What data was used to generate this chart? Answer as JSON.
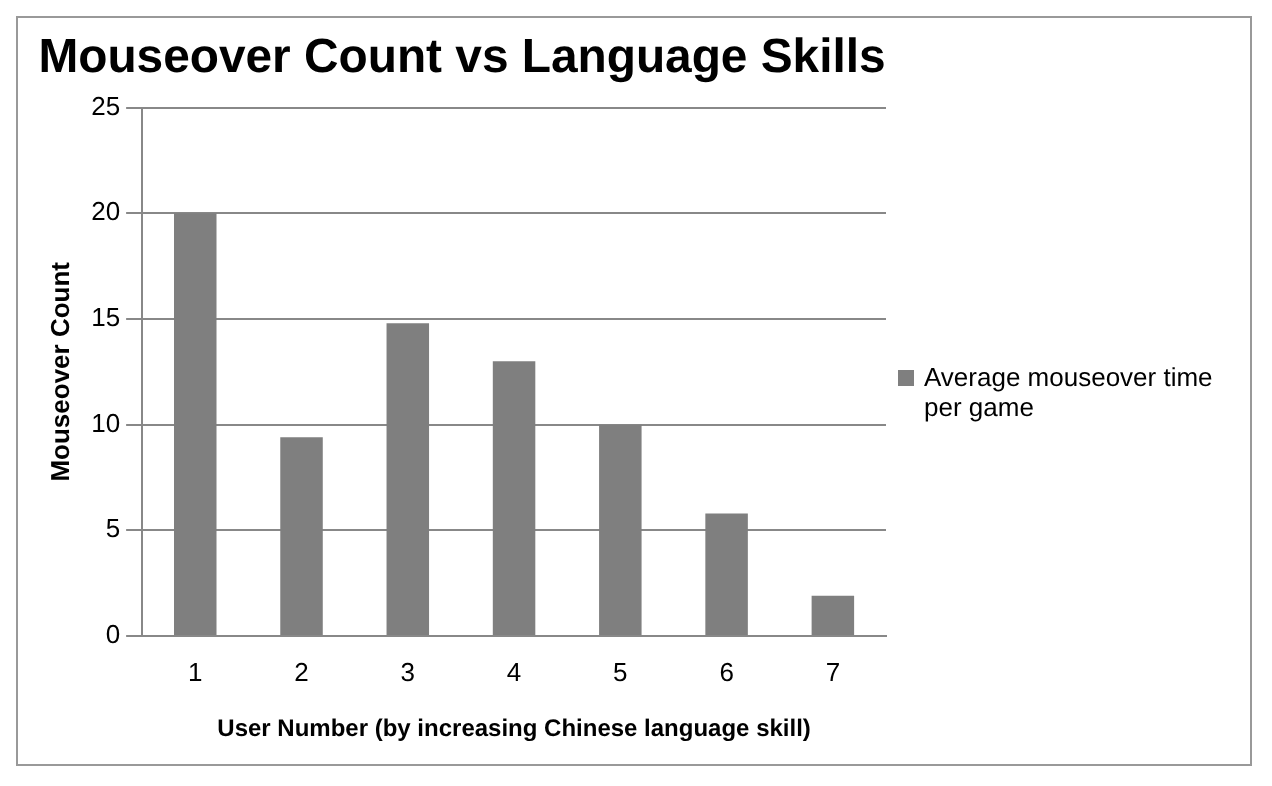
{
  "chart_data": {
    "type": "bar",
    "title": "Mouseover Count vs Language Skills",
    "xlabel": "User Number (by increasing Chinese language skill)",
    "ylabel": "Mouseover Count",
    "categories": [
      "1",
      "2",
      "3",
      "4",
      "5",
      "6",
      "7"
    ],
    "series": [
      {
        "name": "Average mouseover time per game",
        "color": "#7f7f7f",
        "values": [
          20,
          9.4,
          14.8,
          13,
          10,
          5.8,
          1.9
        ]
      }
    ],
    "ylim": [
      0,
      25
    ],
    "yticks": [
      0,
      5,
      10,
      15,
      20,
      25
    ],
    "grid": "y",
    "legend": "right"
  }
}
